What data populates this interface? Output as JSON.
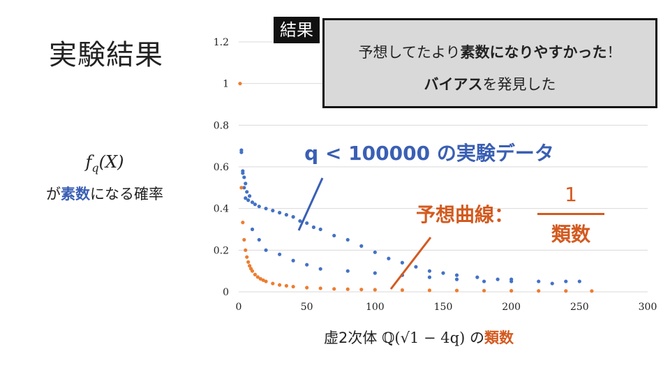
{
  "slide": {
    "title": "実験結果",
    "side_formula_f": "f",
    "side_formula_q": "q",
    "side_formula_arg": "(X)",
    "side_desc_pre": "が",
    "side_desc_key": "素数",
    "side_desc_post": "になる確率"
  },
  "result": {
    "tag": "結果",
    "line1_pre": "予想してたより",
    "line1_key": "素数になりやすかった",
    "line1_post": "！",
    "line2_key": "バイアス",
    "line2_post": "を発見した"
  },
  "annotations": {
    "blue": "q < 100000 の実験データ",
    "orange": "予想曲線：",
    "frac_num": "1",
    "frac_den": "類数"
  },
  "xlabel": {
    "pre": "虚2次体 ",
    "math": "ℚ(√1 − 4q)",
    "mid": " の",
    "key": "類数"
  },
  "colors": {
    "blue": "#3a5fb4",
    "orange": "#d35a1f",
    "scatter_blue": "#4472c4",
    "scatter_orange": "#ed7d31",
    "grid": "#d9d9d9",
    "box_bg": "#d9d9d9"
  },
  "chart_data": {
    "type": "scatter",
    "xlim": [
      0,
      300
    ],
    "ylim": [
      0,
      1.2
    ],
    "x_ticks": [
      "0",
      "50",
      "100",
      "150",
      "200",
      "250",
      "300"
    ],
    "y_ticks": [
      "0",
      "0.2",
      "0.4",
      "0.6",
      "0.8",
      "1",
      "1.2"
    ],
    "grid": true,
    "series": [
      {
        "color": "#4472c4",
        "points": [
          [
            2,
            0.68
          ],
          [
            2,
            0.67
          ],
          [
            3,
            0.58
          ],
          [
            3,
            0.57
          ],
          [
            4,
            0.55
          ],
          [
            5,
            0.52
          ],
          [
            4,
            0.5
          ],
          [
            6,
            0.48
          ],
          [
            5,
            0.45
          ],
          [
            7,
            0.44
          ],
          [
            8,
            0.46
          ],
          [
            10,
            0.43
          ],
          [
            12,
            0.42
          ],
          [
            15,
            0.41
          ],
          [
            20,
            0.4
          ],
          [
            25,
            0.39
          ],
          [
            30,
            0.38
          ],
          [
            35,
            0.37
          ],
          [
            40,
            0.36
          ],
          [
            45,
            0.34
          ],
          [
            50,
            0.33
          ],
          [
            55,
            0.31
          ],
          [
            60,
            0.3
          ],
          [
            70,
            0.27
          ],
          [
            80,
            0.25
          ],
          [
            90,
            0.22
          ],
          [
            100,
            0.19
          ],
          [
            110,
            0.16
          ],
          [
            120,
            0.14
          ],
          [
            130,
            0.12
          ],
          [
            140,
            0.1
          ],
          [
            150,
            0.09
          ],
          [
            160,
            0.08
          ],
          [
            175,
            0.07
          ],
          [
            190,
            0.06
          ],
          [
            200,
            0.06
          ],
          [
            220,
            0.05
          ],
          [
            240,
            0.05
          ],
          [
            250,
            0.05
          ],
          [
            10,
            0.3
          ],
          [
            15,
            0.25
          ],
          [
            20,
            0.2
          ],
          [
            30,
            0.18
          ],
          [
            40,
            0.15
          ],
          [
            50,
            0.13
          ],
          [
            60,
            0.11
          ],
          [
            80,
            0.1
          ],
          [
            100,
            0.09
          ],
          [
            120,
            0.08
          ],
          [
            140,
            0.07
          ],
          [
            160,
            0.06
          ],
          [
            180,
            0.05
          ],
          [
            200,
            0.05
          ],
          [
            230,
            0.04
          ]
        ]
      },
      {
        "color": "#ed7d31",
        "points": [
          [
            1,
            1.0
          ],
          [
            2,
            0.5
          ],
          [
            3,
            0.333
          ],
          [
            4,
            0.25
          ],
          [
            5,
            0.2
          ],
          [
            6,
            0.167
          ],
          [
            7,
            0.143
          ],
          [
            8,
            0.125
          ],
          [
            9,
            0.111
          ],
          [
            10,
            0.1
          ],
          [
            12,
            0.083
          ],
          [
            14,
            0.071
          ],
          [
            16,
            0.0625
          ],
          [
            18,
            0.056
          ],
          [
            20,
            0.05
          ],
          [
            25,
            0.04
          ],
          [
            30,
            0.033
          ],
          [
            35,
            0.029
          ],
          [
            40,
            0.025
          ],
          [
            50,
            0.02
          ],
          [
            60,
            0.017
          ],
          [
            70,
            0.014
          ],
          [
            80,
            0.0125
          ],
          [
            90,
            0.011
          ],
          [
            100,
            0.01
          ],
          [
            120,
            0.0083
          ],
          [
            140,
            0.0071
          ],
          [
            160,
            0.0063
          ],
          [
            180,
            0.0056
          ],
          [
            200,
            0.005
          ],
          [
            220,
            0.0045
          ],
          [
            240,
            0.0042
          ],
          [
            259,
            0.0039
          ]
        ]
      }
    ]
  }
}
